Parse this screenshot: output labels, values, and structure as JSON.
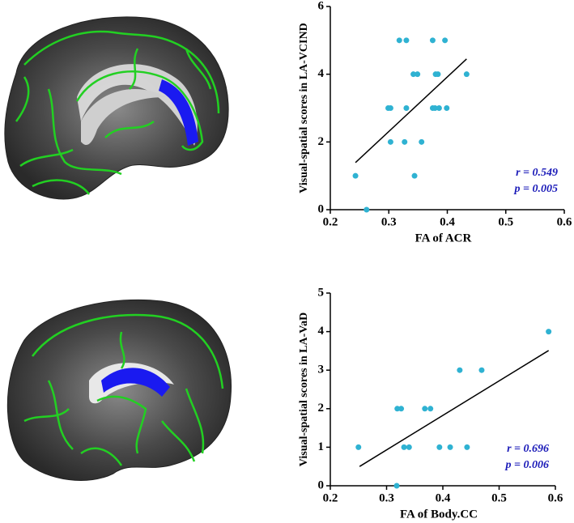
{
  "chart_data": [
    {
      "type": "scatter",
      "x_label": "FA of ACR",
      "y_label": "Visual-spatial scores in LA-VCIND",
      "color": "#2fb2d2",
      "x": [
        0.243,
        0.262,
        0.299,
        0.303,
        0.303,
        0.318,
        0.327,
        0.33,
        0.33,
        0.344,
        0.342,
        0.349,
        0.356,
        0.375,
        0.375,
        0.379,
        0.38,
        0.384,
        0.386,
        0.396,
        0.399,
        0.433
      ],
      "values": [
        1,
        0,
        3,
        3,
        2,
        5,
        2,
        5,
        3,
        1,
        4,
        4,
        2,
        5,
        3,
        3,
        4,
        4,
        3,
        5,
        3,
        4
      ],
      "fit_line": {
        "x": [
          0.243,
          0.433
        ],
        "y": [
          1.39,
          4.45
        ]
      },
      "xlim": [
        0.2,
        0.6
      ],
      "xticks": [
        0.2,
        0.3,
        0.4,
        0.5,
        0.6
      ],
      "ylim": [
        0,
        6
      ],
      "yticks": [
        0,
        2,
        4,
        6
      ],
      "annotations": [
        "r = 0.549",
        "p = 0.005"
      ]
    },
    {
      "type": "scatter",
      "x_label": "FA of Body.CC",
      "y_label": "Visual-spatial scores in LA-VaD",
      "color": "#2fb2d2",
      "x": [
        0.25,
        0.319,
        0.326,
        0.368,
        0.378,
        0.331,
        0.34,
        0.394,
        0.413,
        0.443,
        0.318,
        0.43,
        0.469,
        0.588
      ],
      "values": [
        1,
        2,
        2,
        2,
        2,
        1,
        1,
        1,
        1,
        1,
        0,
        3,
        3,
        4
      ],
      "fit_line": {
        "x": [
          0.252,
          0.588
        ],
        "y": [
          0.5,
          3.51
        ]
      },
      "xlim": [
        0.2,
        0.6
      ],
      "xticks": [
        0.2,
        0.3,
        0.4,
        0.5,
        0.6
      ],
      "ylim": [
        0,
        5
      ],
      "yticks": [
        0,
        1,
        2,
        3,
        4,
        5
      ],
      "annotations": [
        "r = 0.696",
        "p = 0.006"
      ]
    }
  ]
}
